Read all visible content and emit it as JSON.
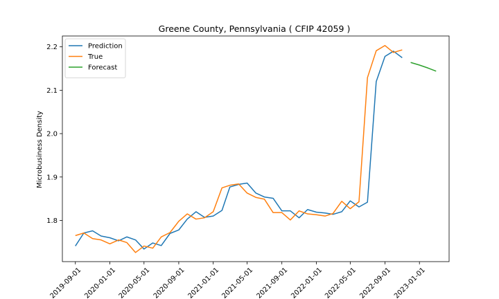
{
  "chart_data": {
    "type": "line",
    "title": "Greene County, Pennsylvania ( CFIP 42059 )",
    "xlabel": "",
    "ylabel": "Microbusiness Density",
    "xlim": [
      "2019-07-17",
      "2023-04-16"
    ],
    "ylim": [
      1.705,
      2.225
    ],
    "xticks": [
      "2019-09-01",
      "2020-01-01",
      "2020-05-01",
      "2020-09-01",
      "2021-01-01",
      "2021-05-01",
      "2021-09-01",
      "2022-01-01",
      "2022-05-01",
      "2022-09-01",
      "2023-01-01"
    ],
    "yticks": [
      1.8,
      1.9,
      2.0,
      2.1,
      2.2
    ],
    "ytick_labels": [
      "1.8",
      "1.9",
      "2.0",
      "2.1",
      "2.2"
    ],
    "grid": false,
    "legend_position": "top-left",
    "series": [
      {
        "name": "Prediction",
        "color": "#1f77b4",
        "x": [
          "2019-09-01",
          "2019-10-01",
          "2019-11-01",
          "2019-12-01",
          "2020-01-01",
          "2020-02-01",
          "2020-03-01",
          "2020-04-01",
          "2020-05-01",
          "2020-06-01",
          "2020-07-01",
          "2020-08-01",
          "2020-09-01",
          "2020-10-01",
          "2020-11-01",
          "2020-12-01",
          "2021-01-01",
          "2021-02-01",
          "2021-03-01",
          "2021-04-01",
          "2021-05-01",
          "2021-06-01",
          "2021-07-01",
          "2021-08-01",
          "2021-09-01",
          "2021-10-01",
          "2021-11-01",
          "2021-12-01",
          "2022-01-01",
          "2022-02-01",
          "2022-03-01",
          "2022-04-01",
          "2022-05-01",
          "2022-06-01",
          "2022-07-01",
          "2022-08-01",
          "2022-09-01",
          "2022-10-01",
          "2022-11-01"
        ],
        "y": [
          1.741,
          1.771,
          1.776,
          1.764,
          1.76,
          1.753,
          1.762,
          1.755,
          1.734,
          1.748,
          1.742,
          1.77,
          1.778,
          1.803,
          1.82,
          1.807,
          1.81,
          1.823,
          1.877,
          1.883,
          1.886,
          1.863,
          1.854,
          1.851,
          1.822,
          1.822,
          1.806,
          1.825,
          1.819,
          1.817,
          1.814,
          1.82,
          1.845,
          1.831,
          1.842,
          2.12,
          2.178,
          2.19,
          2.175
        ]
      },
      {
        "name": "True",
        "color": "#ff7f0e",
        "x": [
          "2019-09-01",
          "2019-10-01",
          "2019-11-01",
          "2019-12-01",
          "2020-01-01",
          "2020-02-01",
          "2020-03-01",
          "2020-04-01",
          "2020-05-01",
          "2020-06-01",
          "2020-07-01",
          "2020-08-01",
          "2020-09-01",
          "2020-10-01",
          "2020-11-01",
          "2020-12-01",
          "2021-01-01",
          "2021-02-01",
          "2021-03-01",
          "2021-04-01",
          "2021-05-01",
          "2021-06-01",
          "2021-07-01",
          "2021-08-01",
          "2021-09-01",
          "2021-10-01",
          "2021-11-01",
          "2021-12-01",
          "2022-01-01",
          "2022-02-01",
          "2022-03-01",
          "2022-04-01",
          "2022-05-01",
          "2022-06-01",
          "2022-07-01",
          "2022-08-01",
          "2022-09-01",
          "2022-10-01",
          "2022-11-01"
        ],
        "y": [
          1.765,
          1.771,
          1.758,
          1.755,
          1.746,
          1.755,
          1.749,
          1.726,
          1.741,
          1.736,
          1.762,
          1.772,
          1.798,
          1.815,
          1.803,
          1.806,
          1.82,
          1.875,
          1.881,
          1.884,
          1.863,
          1.853,
          1.849,
          1.818,
          1.818,
          1.801,
          1.822,
          1.815,
          1.813,
          1.81,
          1.816,
          1.844,
          1.827,
          1.843,
          2.129,
          2.191,
          2.203,
          2.187,
          2.193
        ]
      },
      {
        "name": "Forecast",
        "color": "#2ca02c",
        "x": [
          "2022-12-01",
          "2023-01-01",
          "2023-02-01",
          "2023-03-01"
        ],
        "y": [
          2.164,
          2.158,
          2.151,
          2.144
        ]
      }
    ]
  }
}
